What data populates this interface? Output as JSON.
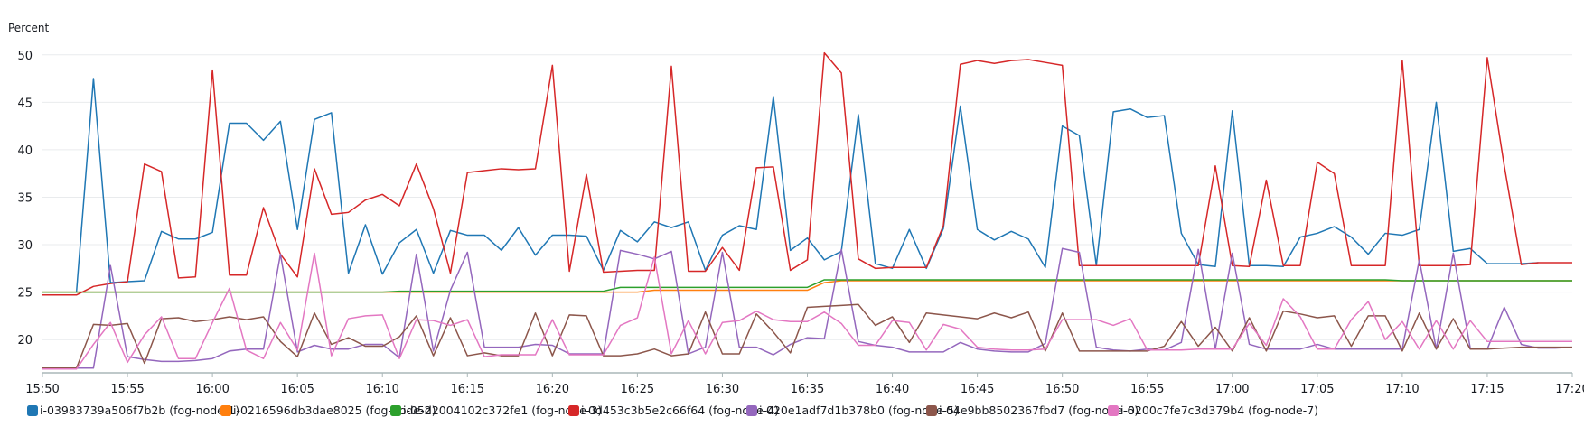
{
  "chart_data": {
    "type": "line",
    "ylabel": "Percent",
    "ylim": [
      16.5,
      51.5
    ],
    "y_ticks": [
      20,
      25,
      30,
      35,
      40,
      45,
      50
    ],
    "x_tick_labels": [
      "15:50",
      "15:55",
      "16:00",
      "16:05",
      "16:10",
      "16:15",
      "16:20",
      "16:25",
      "16:30",
      "16:35",
      "16:40",
      "16:45",
      "16:50",
      "16:55",
      "17:00",
      "17:05",
      "17:10",
      "17:15",
      "17:20"
    ],
    "x_range_minutes": [
      0,
      90
    ],
    "x_step_minutes": 1,
    "grid": true,
    "legend": "bottom",
    "series": [
      {
        "name": "i-03983739a506f7b2b (fog-node-1)",
        "color": "#1f77b4",
        "start_minute": 2,
        "values": [
          25.0,
          47.5,
          26.0,
          26.1,
          26.2,
          31.4,
          30.6,
          30.6,
          31.3,
          42.8,
          42.8,
          41.0,
          43.0,
          31.6,
          43.2,
          43.9,
          27.0,
          32.1,
          26.9,
          30.2,
          31.6,
          27.0,
          31.5,
          31.0,
          31.0,
          29.4,
          31.8,
          28.9,
          31.0,
          31.0,
          30.9,
          27.3,
          31.5,
          30.3,
          32.4,
          31.8,
          32.4,
          27.3,
          31.0,
          32.0,
          31.6,
          45.6,
          29.4,
          30.7,
          28.4,
          29.3,
          43.7,
          28.0,
          27.5,
          31.6,
          27.5,
          31.7,
          44.6,
          31.6,
          30.5,
          31.4,
          30.6,
          27.6,
          42.5,
          41.5,
          27.8,
          44.0,
          44.3,
          43.4,
          43.6,
          31.2,
          27.9,
          27.7,
          44.1,
          27.8,
          27.8,
          27.7,
          30.8,
          31.2,
          31.9,
          30.8,
          29.0,
          31.2,
          31.0,
          31.6,
          45.0,
          29.3,
          29.6,
          28.0,
          28.0,
          28.0,
          28.1
        ]
      },
      {
        "name": "i-0216596db3dae8025 (fog-node-2)",
        "color": "#ff7f0e",
        "start_minute": 0,
        "values": [
          25.0,
          25.0,
          25.0,
          25.0,
          25.0,
          25.0,
          25.0,
          25.0,
          25.0,
          25.0,
          25.0,
          25.0,
          25.0,
          25.0,
          25.0,
          25.0,
          25.0,
          25.0,
          25.0,
          25.0,
          25.0,
          25.0,
          25.0,
          25.0,
          25.0,
          25.0,
          25.0,
          25.0,
          25.0,
          25.0,
          25.0,
          25.0,
          25.0,
          25.0,
          25.0,
          25.0,
          25.2,
          25.2,
          25.2,
          25.2,
          25.2,
          25.2,
          25.2,
          25.2,
          25.2,
          25.2,
          26.0,
          26.2,
          26.2,
          26.2,
          26.2,
          26.2,
          26.2,
          26.2,
          26.2,
          26.2,
          26.2,
          26.2,
          26.2,
          26.2,
          26.2,
          26.2,
          26.2,
          26.2,
          26.2,
          26.2,
          26.2,
          26.2,
          26.2,
          26.2,
          26.2,
          26.2,
          26.2,
          26.2,
          26.2,
          26.2,
          26.2,
          26.2,
          26.2,
          26.2,
          26.2,
          26.2,
          26.2,
          26.2,
          26.2,
          26.2,
          26.2,
          26.2,
          26.2,
          26.2,
          26.2
        ]
      },
      {
        "name": "i-05d2004102c372fe1 (fog-node-3)",
        "color": "#2ca02c",
        "start_minute": 0,
        "values": [
          25.0,
          25.0,
          25.0,
          25.0,
          25.0,
          25.0,
          25.0,
          25.0,
          25.0,
          25.0,
          25.0,
          25.0,
          25.0,
          25.0,
          25.0,
          25.0,
          25.0,
          25.0,
          25.0,
          25.0,
          25.0,
          25.1,
          25.1,
          25.1,
          25.1,
          25.1,
          25.1,
          25.1,
          25.1,
          25.1,
          25.1,
          25.1,
          25.1,
          25.1,
          25.5,
          25.5,
          25.5,
          25.5,
          25.5,
          25.5,
          25.5,
          25.5,
          25.5,
          25.5,
          25.5,
          25.5,
          26.3,
          26.3,
          26.3,
          26.3,
          26.3,
          26.3,
          26.3,
          26.3,
          26.3,
          26.3,
          26.3,
          26.3,
          26.3,
          26.3,
          26.3,
          26.3,
          26.3,
          26.3,
          26.3,
          26.3,
          26.3,
          26.3,
          26.3,
          26.3,
          26.3,
          26.3,
          26.3,
          26.3,
          26.3,
          26.3,
          26.3,
          26.3,
          26.3,
          26.3,
          26.2,
          26.2,
          26.2,
          26.2,
          26.2,
          26.2,
          26.2,
          26.2,
          26.2,
          26.2,
          26.2
        ]
      },
      {
        "name": "i-0d453c3b5e2c66f64 (fog-node-4)",
        "color": "#d62728",
        "start_minute": 0,
        "values": [
          24.7,
          24.7,
          24.7,
          25.6,
          25.9,
          26.1,
          38.5,
          37.7,
          26.5,
          26.6,
          48.4,
          26.8,
          26.8,
          33.9,
          29.0,
          26.6,
          38.0,
          33.2,
          33.4,
          34.7,
          35.3,
          34.1,
          38.5,
          33.8,
          27.0,
          37.6,
          37.8,
          38.0,
          37.9,
          38.0,
          48.9,
          27.2,
          37.4,
          27.1,
          27.2,
          27.3,
          27.3,
          48.8,
          27.2,
          27.2,
          29.7,
          27.3,
          38.1,
          38.2,
          27.3,
          28.4,
          50.2,
          48.1,
          28.5,
          27.5,
          27.6,
          27.6,
          27.6,
          32.0,
          49.0,
          49.4,
          49.1,
          49.4,
          49.5,
          49.2,
          48.9,
          27.8,
          27.8,
          27.8,
          27.8,
          27.8,
          27.8,
          27.8,
          27.8,
          38.3,
          27.8,
          27.7,
          36.8,
          27.8,
          27.8,
          38.7,
          37.5,
          27.8,
          27.8,
          27.8,
          49.4,
          27.8,
          27.8,
          27.8,
          27.9,
          49.7,
          38.3,
          27.9,
          28.1,
          28.1,
          28.1
        ]
      },
      {
        "name": "i-020e1adf7d1b378b0 (fog-node-5)",
        "color": "#9467bd",
        "start_minute": 0,
        "values": [
          17.0,
          17.0,
          17.0,
          17.0,
          27.8,
          18.2,
          17.9,
          17.7,
          17.7,
          17.8,
          18.0,
          18.8,
          19.0,
          19.0,
          29.0,
          18.7,
          19.4,
          19.0,
          19.0,
          19.5,
          19.5,
          18.1,
          29.0,
          18.8,
          25.2,
          29.2,
          19.2,
          19.2,
          19.2,
          19.5,
          19.4,
          18.5,
          18.5,
          18.5,
          29.4,
          29.0,
          28.5,
          29.3,
          18.5,
          19.2,
          29.2,
          19.2,
          19.2,
          18.4,
          19.5,
          20.2,
          20.1,
          29.5,
          19.8,
          19.4,
          19.2,
          18.7,
          18.7,
          18.7,
          19.7,
          19.0,
          18.8,
          18.7,
          18.7,
          19.6,
          29.6,
          29.2,
          19.2,
          18.9,
          18.8,
          19.0,
          18.9,
          19.7,
          29.5,
          19.0,
          29.1,
          19.5,
          19.0,
          19.0,
          19.0,
          19.5,
          19.0,
          19.0,
          19.0,
          19.0,
          19.0,
          28.4,
          19.0,
          29.1,
          19.1,
          19.0,
          23.4,
          19.5,
          19.1,
          19.1,
          19.2
        ]
      },
      {
        "name": "i-04e9bb8502367fbd7 (fog-node-6)",
        "color": "#8c564b",
        "start_minute": 0,
        "values": [
          17.0,
          17.0,
          17.0,
          21.6,
          21.5,
          21.7,
          17.5,
          22.2,
          22.3,
          21.9,
          22.1,
          22.4,
          22.1,
          22.4,
          19.8,
          18.2,
          22.8,
          19.5,
          20.2,
          19.3,
          19.3,
          20.3,
          22.5,
          18.3,
          22.3,
          18.3,
          18.6,
          18.3,
          18.3,
          22.8,
          18.3,
          22.6,
          22.5,
          18.3,
          18.3,
          18.5,
          19.0,
          18.3,
          18.5,
          22.9,
          18.5,
          18.5,
          22.7,
          20.8,
          18.6,
          23.4,
          23.5,
          23.6,
          23.7,
          21.5,
          22.4,
          19.7,
          22.8,
          22.6,
          22.4,
          22.2,
          22.8,
          22.3,
          22.9,
          18.8,
          22.8,
          18.8,
          18.8,
          18.8,
          18.8,
          18.8,
          19.3,
          21.9,
          19.3,
          21.3,
          18.8,
          22.3,
          18.8,
          23.0,
          22.7,
          22.3,
          22.5,
          19.3,
          22.5,
          22.5,
          18.8,
          22.8,
          19.0,
          22.2,
          19.0,
          19.0,
          19.1,
          19.2,
          19.2,
          19.2,
          19.2
        ]
      },
      {
        "name": "i-0200c7fe7c3d379b4 (fog-node-7)",
        "color": "#e377c2",
        "start_minute": 0,
        "values": [
          16.9,
          16.9,
          16.9,
          19.5,
          21.8,
          17.6,
          20.5,
          22.4,
          18.0,
          18.0,
          21.8,
          25.4,
          18.9,
          18.0,
          21.8,
          18.9,
          29.1,
          18.3,
          22.2,
          22.5,
          22.6,
          18.0,
          22.1,
          22.0,
          21.5,
          22.1,
          18.2,
          18.4,
          18.4,
          18.4,
          22.1,
          18.4,
          18.4,
          18.4,
          21.5,
          22.3,
          28.7,
          18.5,
          22.0,
          18.5,
          21.8,
          22.0,
          23.0,
          22.1,
          21.9,
          21.9,
          22.9,
          21.7,
          19.4,
          19.4,
          22.0,
          21.8,
          18.9,
          21.6,
          21.1,
          19.2,
          19.0,
          18.9,
          18.9,
          19.0,
          22.1,
          22.1,
          22.1,
          21.5,
          22.2,
          18.9,
          18.9,
          18.9,
          19.0,
          19.0,
          19.0,
          21.7,
          19.4,
          24.3,
          22.4,
          19.0,
          19.0,
          22.1,
          24.0,
          20.0,
          21.9,
          19.0,
          22.0,
          19.0,
          22.0,
          19.8,
          19.8,
          19.8,
          19.8,
          19.8,
          19.8
        ]
      }
    ]
  }
}
